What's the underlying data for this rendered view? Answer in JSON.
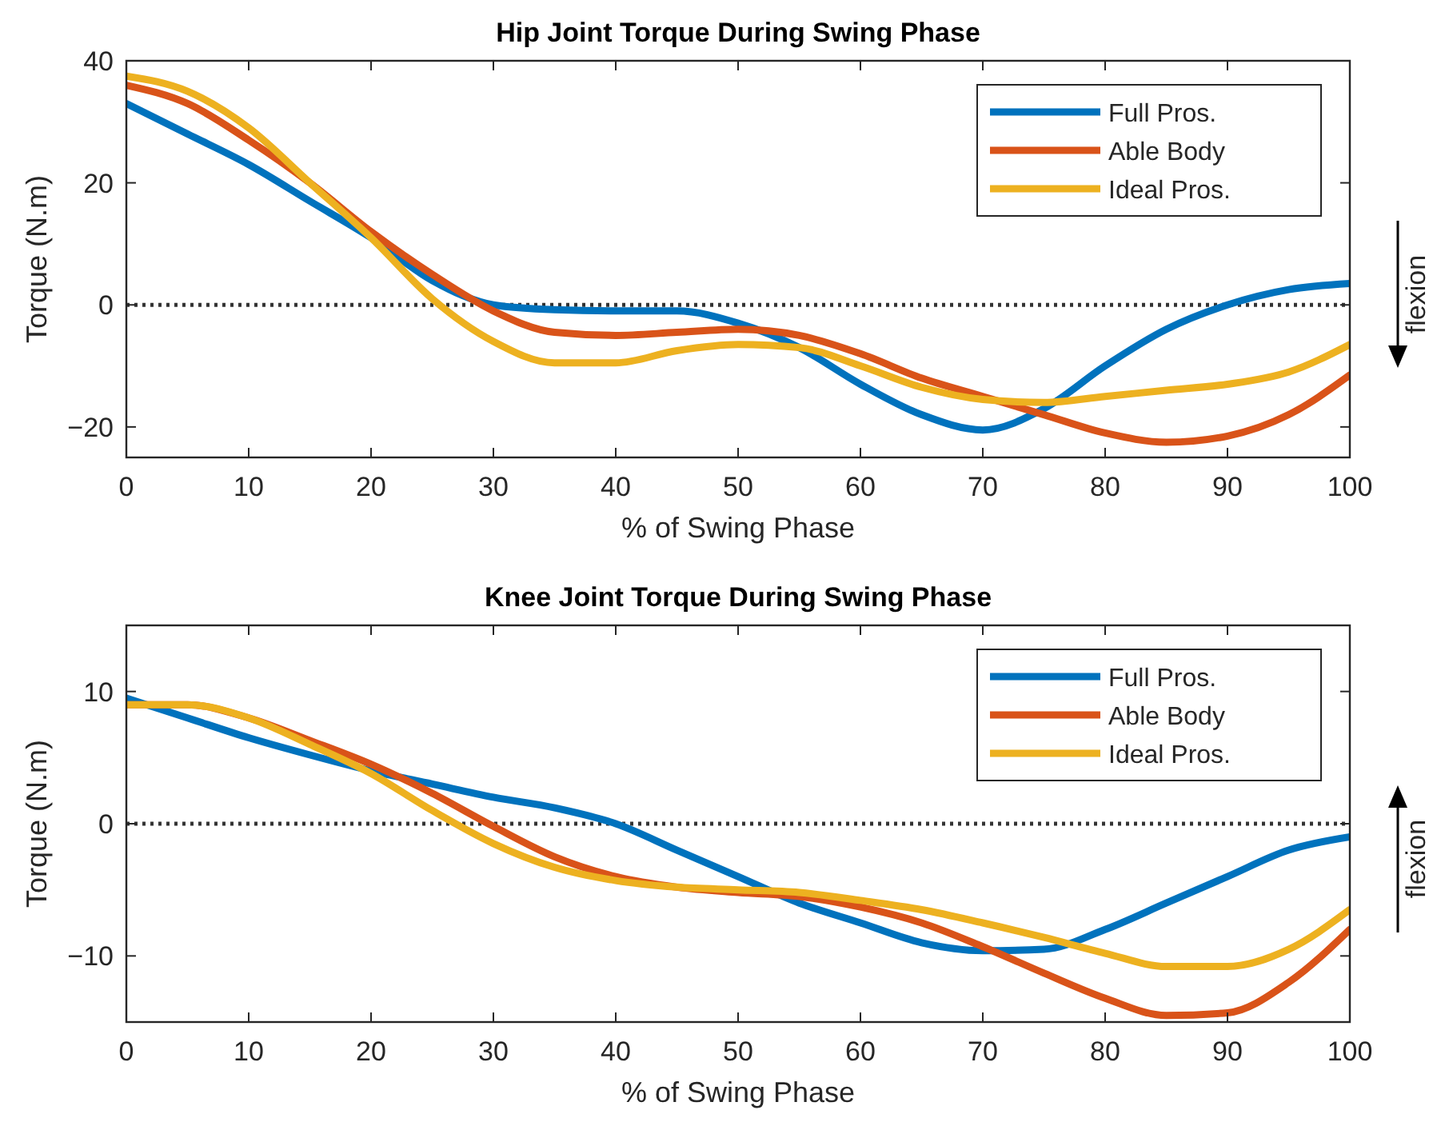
{
  "chart_data": [
    {
      "type": "line",
      "title": "Hip Joint Torque During Swing Phase",
      "xlabel": "% of Swing Phase",
      "ylabel": "Torque (N.m)",
      "annotations": [
        "flexion"
      ],
      "x": [
        0,
        5,
        10,
        15,
        20,
        25,
        30,
        35,
        40,
        45,
        50,
        55,
        60,
        65,
        70,
        75,
        80,
        85,
        90,
        95,
        100
      ],
      "xlim": [
        0,
        100
      ],
      "xticks": [
        0,
        10,
        20,
        30,
        40,
        50,
        60,
        70,
        80,
        90,
        100
      ],
      "ylim": [
        -25,
        40
      ],
      "yticks": [
        -20,
        0,
        20,
        40
      ],
      "legend": "top right",
      "grid": false,
      "ref_lines": [
        {
          "axis": "y",
          "value": 0,
          "color": "#333333",
          "line_style": "dotted"
        }
      ],
      "series": [
        {
          "name": "Full Pros.",
          "color": "#0072bd",
          "values": [
            33,
            28,
            23,
            17,
            11,
            4,
            0,
            -0.8,
            -1,
            -1,
            -3,
            -7,
            -13,
            -18,
            -20.5,
            -17,
            -10,
            -4,
            0,
            2.5,
            3.5
          ]
        },
        {
          "name": "Able Body",
          "color": "#d95319",
          "values": [
            36,
            33,
            27,
            20,
            12,
            5,
            -1,
            -4.5,
            -5,
            -4.5,
            -4,
            -5,
            -8,
            -12,
            -15,
            -18,
            -21,
            -22.5,
            -21.5,
            -18,
            -11.5
          ]
        },
        {
          "name": "Ideal Pros.",
          "color": "#edb120",
          "values": [
            37.5,
            35,
            29,
            20,
            11,
            1,
            -6,
            -9.5,
            -9.5,
            -7.5,
            -6.5,
            -7,
            -10,
            -13.5,
            -15.5,
            -16,
            -15,
            -14,
            -13,
            -11,
            -6.5
          ]
        }
      ]
    },
    {
      "type": "line",
      "title": "Knee Joint Torque During Swing Phase",
      "xlabel": "% of Swing Phase",
      "ylabel": "Torque (N.m)",
      "annotations": [
        "flexion"
      ],
      "x": [
        0,
        5,
        10,
        15,
        20,
        25,
        30,
        35,
        40,
        45,
        50,
        55,
        60,
        65,
        70,
        75,
        80,
        85,
        90,
        95,
        100
      ],
      "xlim": [
        0,
        100
      ],
      "xticks": [
        0,
        10,
        20,
        30,
        40,
        50,
        60,
        70,
        80,
        90,
        100
      ],
      "ylim": [
        -15,
        15
      ],
      "yticks": [
        -10,
        0,
        10
      ],
      "legend": "top right",
      "grid": false,
      "ref_lines": [
        {
          "axis": "y",
          "value": 0,
          "color": "#333333",
          "line_style": "dotted"
        }
      ],
      "series": [
        {
          "name": "Full Pros.",
          "color": "#0072bd",
          "values": [
            9.5,
            8,
            6.5,
            5.2,
            4,
            3,
            2,
            1.2,
            0,
            -2,
            -4,
            -6,
            -7.5,
            -9,
            -9.6,
            -9.5,
            -8,
            -6,
            -4,
            -2,
            -1
          ]
        },
        {
          "name": "Able Body",
          "color": "#d95319",
          "values": [
            9,
            9,
            8,
            6.3,
            4.5,
            2.3,
            -0.2,
            -2.5,
            -4,
            -4.8,
            -5.2,
            -5.5,
            -6.3,
            -7.5,
            -9.3,
            -11.3,
            -13.2,
            -14.5,
            -14.3,
            -12,
            -8
          ]
        },
        {
          "name": "Ideal Pros.",
          "color": "#edb120",
          "values": [
            9,
            9,
            8,
            6,
            3.8,
            1,
            -1.5,
            -3.3,
            -4.3,
            -4.8,
            -5,
            -5.2,
            -5.8,
            -6.5,
            -7.5,
            -8.6,
            -9.8,
            -10.8,
            -10.8,
            -9.5,
            -6.5
          ]
        }
      ]
    }
  ]
}
